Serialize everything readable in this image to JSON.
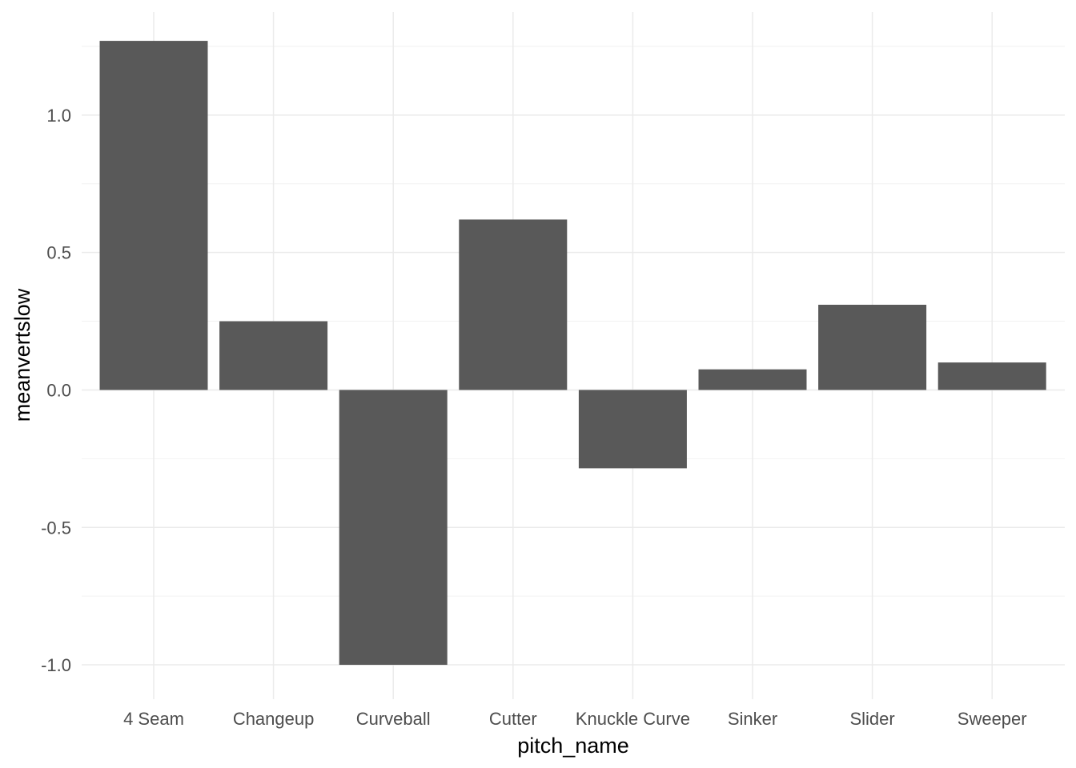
{
  "chart_data": {
    "type": "bar",
    "xlabel": "pitch_name",
    "ylabel": "meanvertslow",
    "categories": [
      "4 Seam",
      "Changeup",
      "Curveball",
      "Cutter",
      "Knuckle Curve",
      "Sinker",
      "Slider",
      "Sweeper"
    ],
    "values": [
      1.27,
      0.25,
      -1.0,
      0.62,
      -0.285,
      0.075,
      0.31,
      0.1
    ],
    "ylim": [
      -1.125,
      1.375
    ],
    "y_ticks": [
      -1.0,
      -0.5,
      0.0,
      0.5,
      1.0
    ],
    "y_tick_labels": [
      "-1.0",
      "-0.5",
      "0.0",
      "0.5",
      "1.0"
    ],
    "grid": true,
    "bar_color": "#595959",
    "grid_color": "#ebebeb"
  }
}
